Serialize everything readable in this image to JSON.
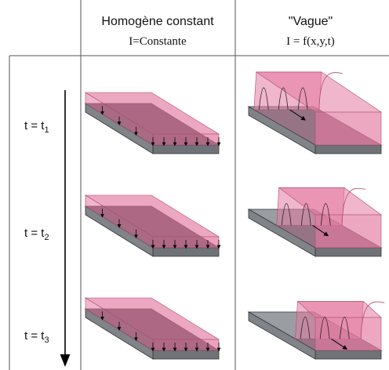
{
  "columns": [
    {
      "title": "Homogène constant",
      "subtitle": "I=Constante"
    },
    {
      "title": "\"Vague\"",
      "subtitle": "I = f(x,y,t)"
    }
  ],
  "rows": [
    {
      "label_main": "t = t",
      "label_sub": "1"
    },
    {
      "label_main": "t = t",
      "label_sub": "2"
    },
    {
      "label_main": "t = t",
      "label_sub": "3"
    }
  ],
  "wave_positions": [
    0.08,
    0.42,
    0.7
  ],
  "colors": {
    "slab_top": "#9a9ea2",
    "slab_front": "#6f7378",
    "slab_side": "#808488",
    "light": "#e47aa0",
    "light_overlap": "#96526e",
    "grid_line": "#555555"
  }
}
